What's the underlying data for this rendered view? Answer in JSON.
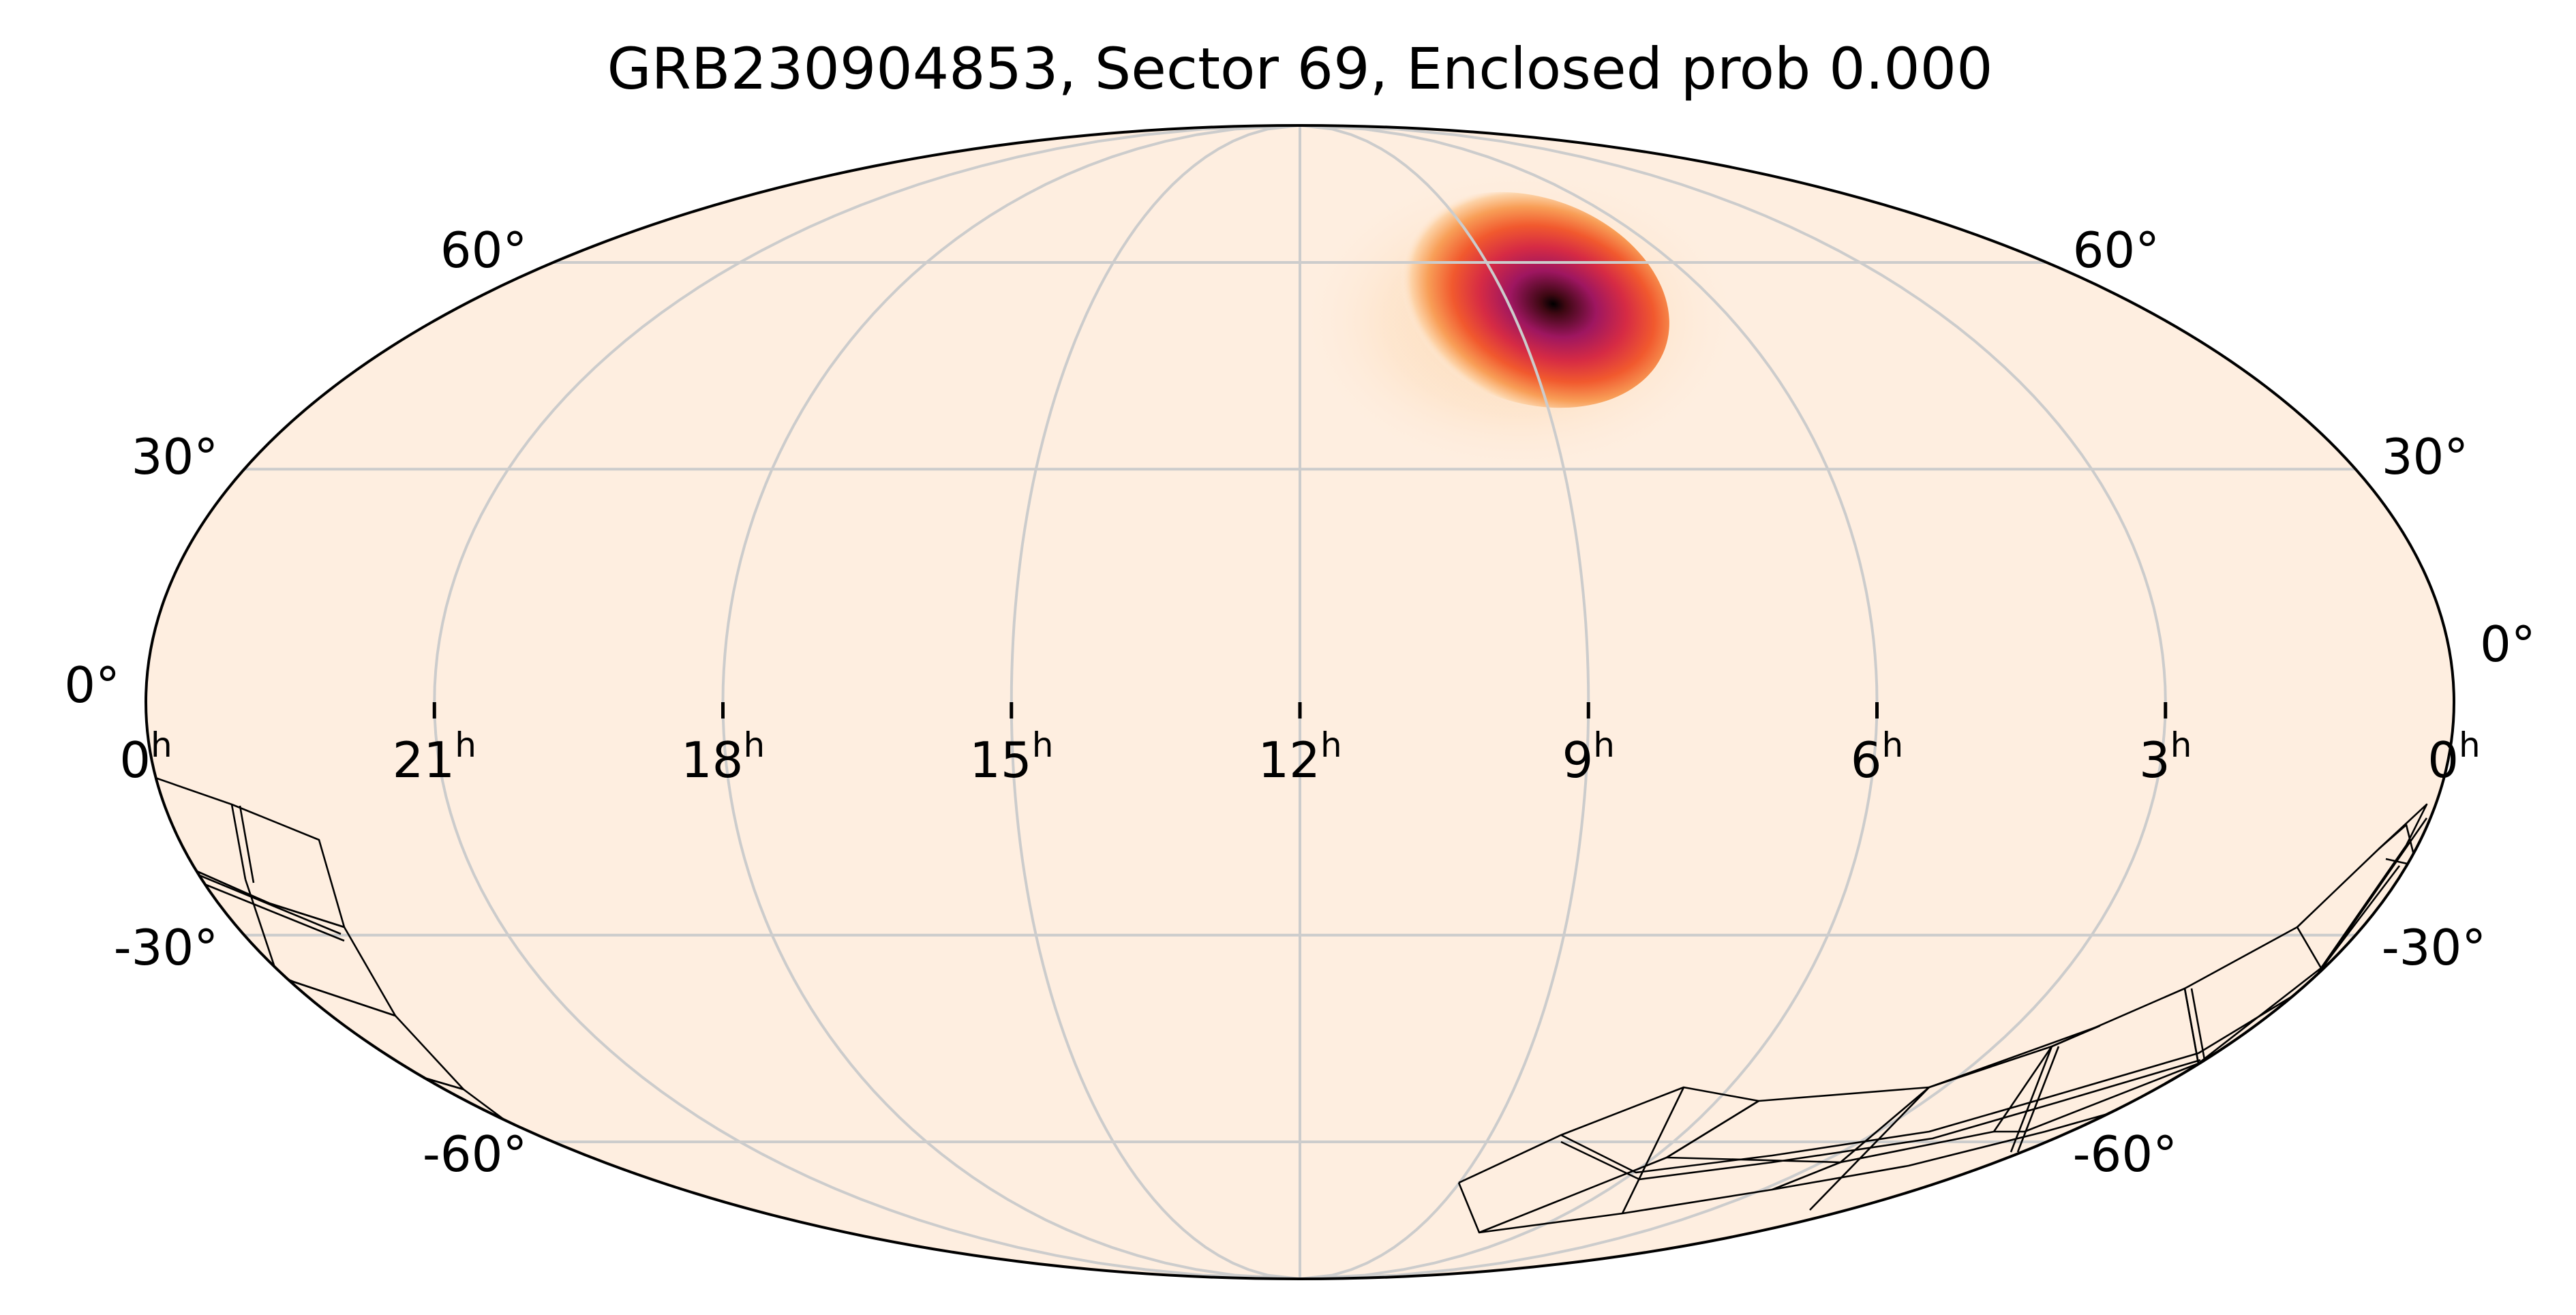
{
  "title": "GRB230904853, Sector 69, Enclosed prob 0.000",
  "projection": "mollweide",
  "background_color": "#feeee0",
  "colormap": [
    "#feeee0",
    "#fdd3a8",
    "#f89e57",
    "#f1592e",
    "#d62b44",
    "#9e1660",
    "#3d0812",
    "#000000"
  ],
  "ra_labels": [
    {
      "hours": 0,
      "text": "0",
      "unit": "h",
      "side": "left"
    },
    {
      "hours": 21,
      "text": "21",
      "unit": "h"
    },
    {
      "hours": 18,
      "text": "18",
      "unit": "h"
    },
    {
      "hours": 15,
      "text": "15",
      "unit": "h"
    },
    {
      "hours": 12,
      "text": "12",
      "unit": "h"
    },
    {
      "hours": 9,
      "text": "9",
      "unit": "h"
    },
    {
      "hours": 6,
      "text": "6",
      "unit": "h"
    },
    {
      "hours": 3,
      "text": "3",
      "unit": "h"
    },
    {
      "hours": 0,
      "text": "0",
      "unit": "h",
      "side": "right"
    }
  ],
  "dec_labels_left": [
    {
      "deg": 60,
      "text": "60°"
    },
    {
      "deg": 30,
      "text": "30°"
    },
    {
      "deg": 0,
      "text": "0°"
    },
    {
      "deg": -30,
      "text": "-30°"
    },
    {
      "deg": -60,
      "text": "-60°"
    }
  ],
  "dec_labels_right": [
    {
      "deg": 60,
      "text": "60°"
    },
    {
      "deg": 30,
      "text": "30°"
    },
    {
      "deg": 0,
      "text": "0°"
    },
    {
      "deg": -30,
      "text": "-30°"
    },
    {
      "deg": -60,
      "text": "-60°"
    }
  ],
  "probability_peak": {
    "ra_hours": 9.6,
    "dec_deg": 50
  },
  "sector_footprint": {
    "sector": 69
  }
}
